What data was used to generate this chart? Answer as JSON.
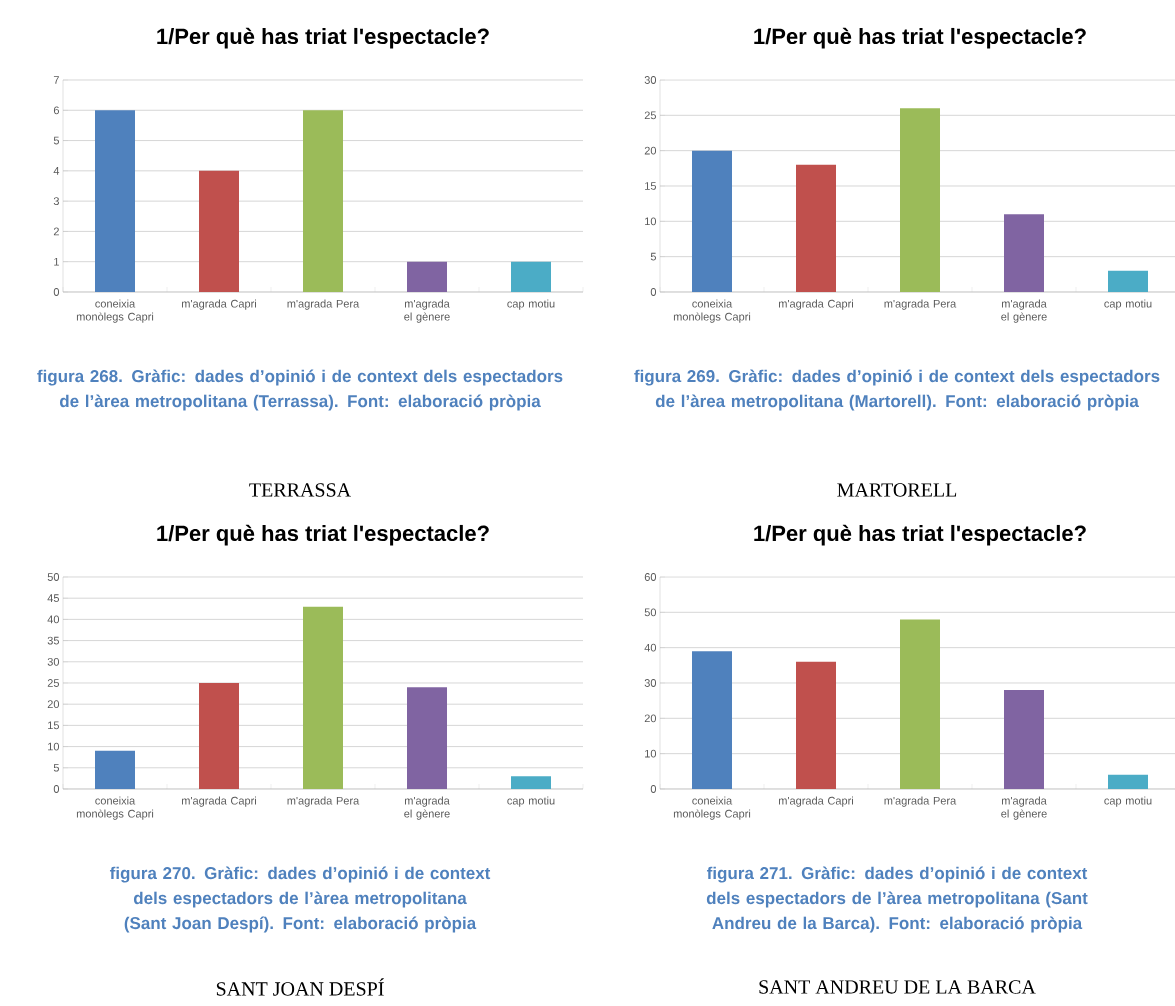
{
  "chart_data": [
    {
      "type": "bar",
      "title": "1/Per què has triat l'espectacle?",
      "categories": [
        "coneixia monòlegs Capri",
        "m'agrada Capri",
        "m'agrada Pera",
        "m'agrada el gènere",
        "cap motiu"
      ],
      "values": [
        6,
        4,
        6,
        1,
        1
      ],
      "colors": [
        "#4f81bd",
        "#c0504d",
        "#9bbb59",
        "#8064a2",
        "#4bacc6"
      ],
      "ylim": [
        0,
        7
      ],
      "yticks": [
        0,
        1,
        2,
        3,
        4,
        5,
        6,
        7
      ],
      "grid": "y",
      "annotations": [
        "figura 268. Gràfic: dades d’opinió i de context dels espectadors de l’àrea metropolitana (Terrassa). Font: elaboració pròpia",
        "TERRASSA"
      ]
    },
    {
      "type": "bar",
      "title": "1/Per què has triat l'espectacle?",
      "categories": [
        "coneixia monòlegs Capri",
        "m'agrada Capri",
        "m'agrada Pera",
        "m'agrada el gènere",
        "cap motiu"
      ],
      "values": [
        20,
        18,
        26,
        11,
        3
      ],
      "colors": [
        "#4f81bd",
        "#c0504d",
        "#9bbb59",
        "#8064a2",
        "#4bacc6"
      ],
      "ylim": [
        0,
        30
      ],
      "yticks": [
        0,
        5,
        10,
        15,
        20,
        25,
        30
      ],
      "grid": "y",
      "annotations": [
        "figura 269. Gràfic: dades d’opinió i de context dels espectadors de l’àrea metropolitana (Martorell). Font: elaboració pròpia",
        "MARTORELL"
      ]
    },
    {
      "type": "bar",
      "title": "1/Per què has triat l'espectacle?",
      "categories": [
        "coneixia monòlegs Capri",
        "m'agrada Capri",
        "m'agrada Pera",
        "m'agrada el gènere",
        "cap motiu"
      ],
      "values": [
        9,
        25,
        43,
        24,
        3
      ],
      "colors": [
        "#4f81bd",
        "#c0504d",
        "#9bbb59",
        "#8064a2",
        "#4bacc6"
      ],
      "ylim": [
        0,
        50
      ],
      "yticks": [
        0,
        5,
        10,
        15,
        20,
        25,
        30,
        35,
        40,
        45,
        50
      ],
      "grid": "y",
      "annotations": [
        "figura 270. Gràfic: dades d’opinió i de context dels espectadors de l’àrea metropolitana (Sant Joan Despí). Font: elaboració pròpia",
        "SANT JOAN DESPÍ"
      ]
    },
    {
      "type": "bar",
      "title": "1/Per què has triat l'espectacle?",
      "categories": [
        "coneixia monòlegs Capri",
        "m'agrada Capri",
        "m'agrada Pera",
        "m'agrada el gènere",
        "cap motiu"
      ],
      "values": [
        39,
        36,
        48,
        28,
        4
      ],
      "colors": [
        "#4f81bd",
        "#c0504d",
        "#9bbb59",
        "#8064a2",
        "#4bacc6"
      ],
      "ylim": [
        0,
        60
      ],
      "yticks": [
        0,
        10,
        20,
        30,
        40,
        50,
        60
      ],
      "grid": "y",
      "annotations": [
        "figura 271. Gràfic: dades d’opinió i de context dels espectadors de l’àrea metropolitana (Sant Andreu de la Barca). Font: elaboració pròpia",
        "SANT ANDREU DE LA BARCA"
      ]
    }
  ]
}
